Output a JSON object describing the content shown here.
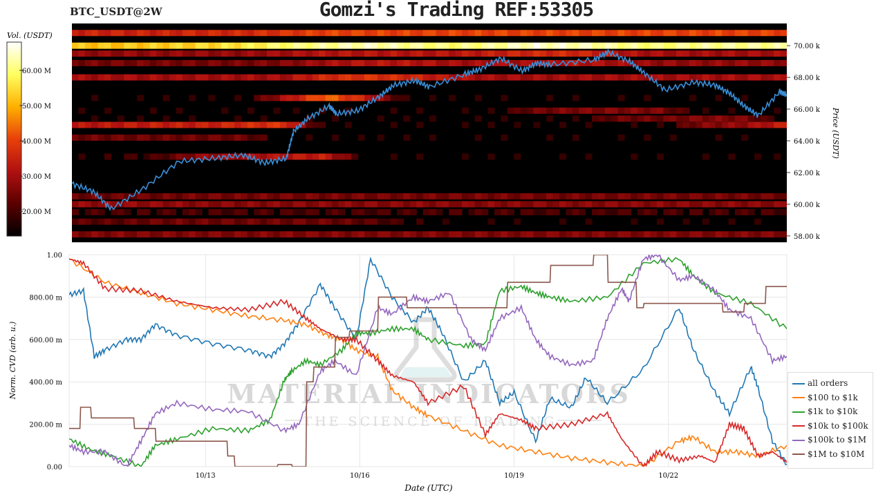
{
  "header": {
    "pair": "BTC_USDT@2W",
    "title": "Gomzi's Trading REF:53305"
  },
  "colorbar": {
    "label": "Vol. (USDT)",
    "ticks": [
      "60.00 M",
      "50.00 M",
      "40.00 M",
      "30.00 M",
      "20.00 M"
    ],
    "colors": [
      "#000000",
      "#5a0000",
      "#b01010",
      "#e8400a",
      "#ffb000",
      "#ffff60",
      "#ffffff"
    ]
  },
  "heatmap": {
    "ylabel": "Price (USDT)",
    "yticks": [
      "70.00 k",
      "68.00 k",
      "66.00 k",
      "64.00 k",
      "62.00 k",
      "60.00 k",
      "58.00 k"
    ],
    "price_color": "#3a8fd8"
  },
  "cvd": {
    "ylabel": "Norm. CVD (arb. u.)",
    "xlabel": "Date (UTC)",
    "yticks": [
      "1.00",
      "800.00 m",
      "600.00 m",
      "400.00 m",
      "200.00 m",
      "0.00"
    ],
    "xticks": [
      "10/13",
      "10/16",
      "10/19",
      "10/22"
    ]
  },
  "watermark": {
    "main": "MATERIAL INDICATORS",
    "sub": "THE SCIENCE OF TRADING"
  },
  "chart_data": [
    {
      "type": "heatmap",
      "x_range": [
        "10/10",
        "10/24"
      ],
      "ylim": [
        57.6,
        71.4
      ],
      "zlim": [
        13,
        68
      ],
      "bands": [
        {
          "price": 70.0,
          "volume_profile": [
            52,
            52,
            53,
            54,
            56,
            60,
            62,
            64,
            62,
            60,
            62,
            65,
            64,
            62,
            60,
            62,
            62,
            62
          ]
        },
        {
          "price": 70.8,
          "volume_profile": [
            35,
            35,
            35,
            36,
            36,
            38,
            40,
            40,
            40,
            40,
            40,
            40,
            40,
            40,
            40,
            40,
            40,
            40
          ]
        },
        {
          "price": 69.5,
          "volume_profile": [
            28,
            28,
            28,
            28,
            28,
            30,
            32,
            32,
            32,
            32,
            34,
            36,
            36,
            32,
            30,
            30,
            30,
            30
          ]
        },
        {
          "price": 68.9,
          "volume_profile": [
            25,
            25,
            25,
            25,
            25,
            26,
            30,
            32,
            32,
            30,
            30,
            30,
            32,
            30,
            28,
            28,
            28,
            28
          ]
        },
        {
          "price": 68.0,
          "volume_profile": [
            30,
            30,
            30,
            30,
            30,
            30,
            36,
            38,
            36,
            32,
            30,
            30,
            30,
            30,
            30,
            30,
            30,
            30
          ]
        },
        {
          "price": 66.7,
          "volume_profile": [
            16,
            16,
            16,
            16,
            16,
            30,
            44,
            34,
            16,
            16,
            16,
            16,
            16,
            16,
            16,
            16,
            16,
            16
          ]
        },
        {
          "price": 65.9,
          "volume_profile": [
            16,
            16,
            16,
            16,
            16,
            16,
            16,
            16,
            16,
            16,
            16,
            24,
            26,
            26,
            26,
            16,
            16,
            16
          ]
        },
        {
          "price": 65.4,
          "volume_profile": [
            16,
            16,
            16,
            16,
            16,
            16,
            16,
            16,
            16,
            16,
            16,
            16,
            16,
            24,
            24,
            26,
            26,
            16
          ]
        },
        {
          "price": 65.0,
          "volume_profile": [
            32,
            33,
            34,
            34,
            36,
            38,
            16,
            16,
            16,
            16,
            16,
            16,
            16,
            16,
            16,
            26,
            28,
            34
          ]
        },
        {
          "price": 64.2,
          "volume_profile": [
            24,
            24,
            24,
            24,
            24,
            16,
            16,
            16,
            16,
            16,
            16,
            16,
            16,
            16,
            16,
            16,
            16,
            16
          ]
        },
        {
          "price": 63.0,
          "volume_profile": [
            16,
            18,
            20,
            28,
            30,
            32,
            34,
            16,
            16,
            16,
            16,
            16,
            16,
            16,
            16,
            16,
            16,
            16
          ]
        },
        {
          "price": 60.5,
          "volume_profile": [
            24,
            24,
            24,
            25,
            25,
            25,
            25,
            25,
            25,
            25,
            25,
            25,
            25,
            25,
            25,
            25,
            25,
            24
          ]
        },
        {
          "price": 60.0,
          "volume_profile": [
            28,
            28,
            28,
            27,
            27,
            27,
            27,
            27,
            27,
            27,
            27,
            27,
            27,
            27,
            27,
            27,
            27,
            27
          ]
        },
        {
          "price": 59.5,
          "volume_profile": [
            20,
            20,
            20,
            20,
            20,
            20,
            20,
            20,
            20,
            20,
            20,
            20,
            20,
            20,
            20,
            20,
            20,
            20
          ]
        },
        {
          "price": 58.9,
          "volume_profile": [
            22,
            22,
            24,
            24,
            24,
            24,
            24,
            22,
            18,
            16,
            16,
            16,
            16,
            16,
            16,
            16,
            16,
            16
          ]
        },
        {
          "price": 58.1,
          "volume_profile": [
            26,
            26,
            26,
            26,
            26,
            26,
            26,
            26,
            26,
            26,
            26,
            26,
            26,
            26,
            26,
            26,
            26,
            26
          ]
        }
      ],
      "price_series": {
        "x": [
          0,
          0.03,
          0.055,
          0.1,
          0.15,
          0.2,
          0.24,
          0.27,
          0.3,
          0.31,
          0.33,
          0.36,
          0.37,
          0.4,
          0.43,
          0.45,
          0.48,
          0.5,
          0.55,
          0.57,
          0.6,
          0.63,
          0.65,
          0.67,
          0.73,
          0.75,
          0.78,
          0.8,
          0.83,
          0.87,
          0.9,
          0.92,
          0.94,
          0.96,
          0.99,
          1.0
        ],
        "y": [
          61.3,
          60.8,
          59.7,
          61.0,
          62.7,
          62.9,
          63.1,
          62.6,
          62.9,
          64.6,
          65.4,
          66.2,
          65.7,
          65.9,
          66.8,
          67.5,
          67.8,
          67.4,
          68.2,
          68.5,
          69.2,
          68.4,
          68.9,
          68.8,
          69.1,
          69.6,
          69.0,
          68.3,
          67.2,
          67.7,
          67.5,
          67.0,
          66.2,
          65.6,
          67.1,
          66.9
        ]
      }
    },
    {
      "type": "line",
      "x_range": [
        "10/10",
        "10/24"
      ],
      "ylim": [
        0,
        1
      ],
      "grid": true,
      "legend": "right",
      "series": [
        {
          "name": "all orders",
          "color": "#1f77b4",
          "x": [
            0,
            0.02,
            0.035,
            0.05,
            0.08,
            0.1,
            0.12,
            0.15,
            0.2,
            0.25,
            0.28,
            0.3,
            0.32,
            0.35,
            0.37,
            0.4,
            0.42,
            0.45,
            0.48,
            0.5,
            0.52,
            0.55,
            0.58,
            0.6,
            0.62,
            0.65,
            0.67,
            0.7,
            0.72,
            0.75,
            0.8,
            0.85,
            0.87,
            0.9,
            0.92,
            0.95,
            0.96,
            0.98,
            1.0
          ],
          "y": [
            0.81,
            0.83,
            0.52,
            0.55,
            0.6,
            0.6,
            0.67,
            0.62,
            0.58,
            0.55,
            0.52,
            0.58,
            0.68,
            0.86,
            0.75,
            0.6,
            0.98,
            0.8,
            0.68,
            0.75,
            0.63,
            0.4,
            0.5,
            0.3,
            0.35,
            0.12,
            0.32,
            0.28,
            0.42,
            0.3,
            0.46,
            0.75,
            0.55,
            0.35,
            0.25,
            0.47,
            0.37,
            0.12,
            0.01
          ]
        },
        {
          "name": "$100 to $1k",
          "color": "#ff7f0e",
          "x": [
            0,
            0.05,
            0.1,
            0.15,
            0.2,
            0.25,
            0.3,
            0.33,
            0.36,
            0.38,
            0.4,
            0.43,
            0.45,
            0.48,
            0.5,
            0.55,
            0.6,
            0.65,
            0.7,
            0.75,
            0.8,
            0.85,
            0.87,
            0.9,
            0.93,
            0.96,
            1.0
          ],
          "y": [
            0.98,
            0.87,
            0.82,
            0.77,
            0.74,
            0.71,
            0.69,
            0.67,
            0.62,
            0.6,
            0.55,
            0.52,
            0.36,
            0.28,
            0.24,
            0.17,
            0.1,
            0.07,
            0.04,
            0.02,
            0.0,
            0.12,
            0.14,
            0.07,
            0.07,
            0.05,
            0.1
          ]
        },
        {
          "name": "$1k to $10k",
          "color": "#2ca02c",
          "x": [
            0,
            0.03,
            0.06,
            0.1,
            0.12,
            0.15,
            0.2,
            0.25,
            0.28,
            0.3,
            0.31,
            0.33,
            0.35,
            0.38,
            0.4,
            0.42,
            0.45,
            0.48,
            0.5,
            0.55,
            0.58,
            0.6,
            0.63,
            0.65,
            0.67,
            0.7,
            0.75,
            0.8,
            0.85,
            0.87,
            0.9,
            0.95,
            1.0
          ],
          "y": [
            0.13,
            0.08,
            0.05,
            0.0,
            0.1,
            0.13,
            0.18,
            0.17,
            0.22,
            0.41,
            0.45,
            0.5,
            0.48,
            0.55,
            0.63,
            0.63,
            0.65,
            0.65,
            0.6,
            0.57,
            0.58,
            0.83,
            0.85,
            0.82,
            0.8,
            0.78,
            0.8,
            0.96,
            0.98,
            0.9,
            0.82,
            0.77,
            0.65
          ]
        },
        {
          "name": "$10k to $100k",
          "color": "#d62728",
          "x": [
            0,
            0.02,
            0.05,
            0.1,
            0.15,
            0.2,
            0.25,
            0.3,
            0.33,
            0.35,
            0.38,
            0.4,
            0.43,
            0.45,
            0.48,
            0.5,
            0.55,
            0.58,
            0.6,
            0.63,
            0.65,
            0.7,
            0.75,
            0.77,
            0.8,
            0.82,
            0.85,
            0.88,
            0.9,
            0.92,
            0.94,
            0.96,
            0.98,
            1.0
          ],
          "y": [
            0.98,
            0.96,
            0.84,
            0.83,
            0.78,
            0.75,
            0.74,
            0.78,
            0.7,
            0.65,
            0.6,
            0.6,
            0.5,
            0.43,
            0.4,
            0.3,
            0.38,
            0.15,
            0.25,
            0.22,
            0.18,
            0.2,
            0.25,
            0.13,
            0.0,
            0.07,
            0.03,
            0.05,
            0.02,
            0.2,
            0.18,
            0.05,
            0.07,
            0.02
          ]
        },
        {
          "name": "$100k to $1M",
          "color": "#9467bd",
          "x": [
            0,
            0.02,
            0.05,
            0.08,
            0.1,
            0.12,
            0.15,
            0.2,
            0.25,
            0.3,
            0.32,
            0.35,
            0.37,
            0.4,
            0.43,
            0.45,
            0.48,
            0.5,
            0.53,
            0.56,
            0.58,
            0.6,
            0.63,
            0.65,
            0.67,
            0.7,
            0.73,
            0.75,
            0.77,
            0.78,
            0.8,
            0.82,
            0.85,
            0.87,
            0.9,
            0.92,
            0.95,
            0.98,
            1.0
          ],
          "y": [
            0.1,
            0.07,
            0.07,
            0.0,
            0.12,
            0.25,
            0.3,
            0.27,
            0.26,
            0.17,
            0.2,
            0.45,
            0.5,
            0.43,
            0.75,
            0.72,
            0.8,
            0.78,
            0.82,
            0.6,
            0.55,
            0.7,
            0.75,
            0.6,
            0.52,
            0.48,
            0.5,
            0.7,
            0.84,
            0.78,
            0.98,
            1.0,
            0.88,
            0.9,
            0.83,
            0.74,
            0.7,
            0.5,
            0.52
          ]
        },
        {
          "name": "$1M to $10M",
          "color": "#8c564b",
          "x": [
            0,
            0.015,
            0.016,
            0.03,
            0.031,
            0.09,
            0.091,
            0.12,
            0.121,
            0.22,
            0.221,
            0.23,
            0.231,
            0.29,
            0.291,
            0.31,
            0.311,
            0.33,
            0.331,
            0.34,
            0.341,
            0.37,
            0.371,
            0.39,
            0.391,
            0.43,
            0.431,
            0.47,
            0.471,
            0.51,
            0.511,
            0.61,
            0.611,
            0.67,
            0.671,
            0.73,
            0.731,
            0.75,
            0.751,
            0.79,
            0.791,
            0.8,
            0.801,
            0.86,
            0.861,
            0.91,
            0.911,
            0.94,
            0.941,
            0.97,
            0.971,
            1.0
          ],
          "y": [
            0.18,
            0.18,
            0.28,
            0.28,
            0.23,
            0.23,
            0.18,
            0.18,
            0.12,
            0.12,
            0.05,
            0.05,
            0.0,
            0.0,
            0.01,
            0.01,
            0.0,
            0.0,
            0.4,
            0.4,
            0.47,
            0.47,
            0.61,
            0.61,
            0.64,
            0.64,
            0.8,
            0.8,
            0.75,
            0.75,
            0.75,
            0.75,
            0.87,
            0.87,
            0.95,
            0.95,
            1.0,
            1.0,
            0.87,
            0.87,
            0.75,
            0.75,
            0.77,
            0.77,
            0.77,
            0.77,
            0.73,
            0.73,
            0.77,
            0.77,
            0.85,
            0.85
          ]
        }
      ]
    }
  ]
}
